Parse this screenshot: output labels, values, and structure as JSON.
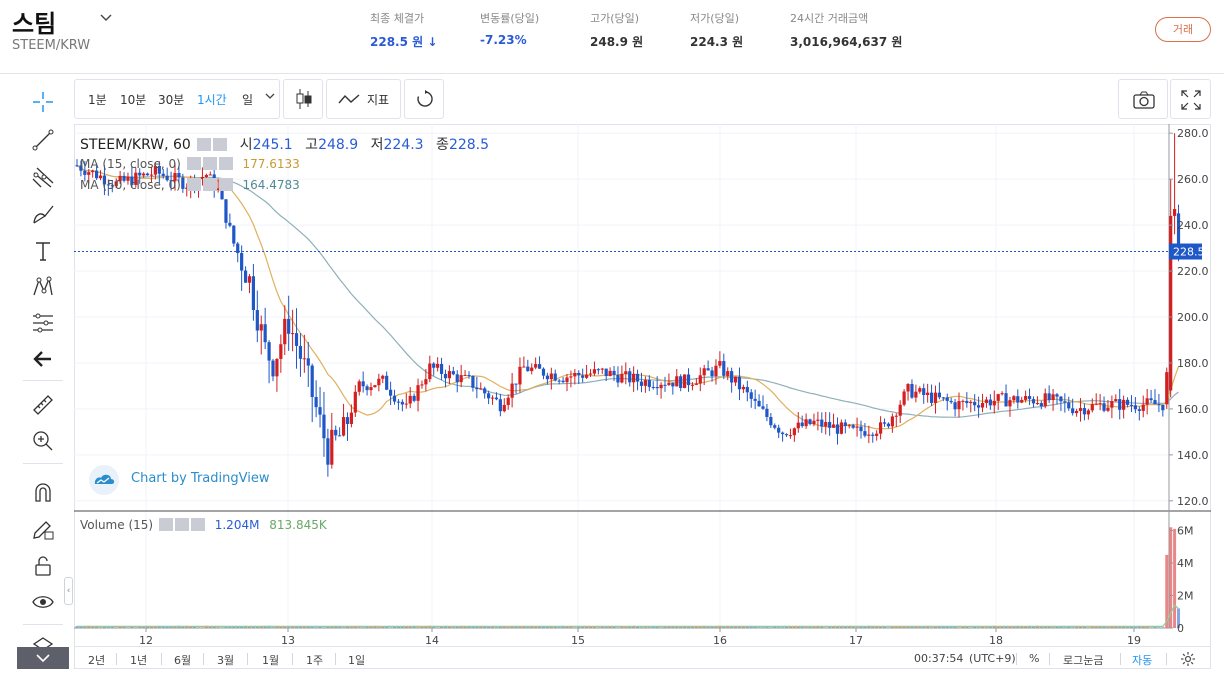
{
  "header": {
    "coin_name": "스팀",
    "pair": "STEEM/KRW",
    "stats": [
      {
        "label": "최종 체결가",
        "value": "228.5 원 ↓",
        "trend": "down"
      },
      {
        "label": "변동률(당일)",
        "value": "-7.23%",
        "trend": "down"
      },
      {
        "label": "고가(당일)",
        "value": "248.9 원",
        "trend": "none"
      },
      {
        "label": "저가(당일)",
        "value": "224.3 원",
        "trend": "none"
      },
      {
        "label": "24시간 거래금액",
        "value": "3,016,964,637 원",
        "trend": "none"
      }
    ],
    "trade_button": "거래"
  },
  "toolbar": {
    "intervals": [
      "1분",
      "10분",
      "30분",
      "1시간",
      "일"
    ],
    "active_interval": "1시간",
    "indicator_label": "지표"
  },
  "legend": {
    "symbol": "STEEM/KRW, 60",
    "open_label": "시",
    "open": "245.1",
    "high_label": "고",
    "high": "248.9",
    "low_label": "저",
    "low": "224.3",
    "close_label": "종",
    "close": "228.5",
    "ma1_label": "MA (15, close, 0)",
    "ma1_value": "177.6133",
    "ma2_label": "MA (50, close, 0)",
    "ma2_value": "164.4783",
    "volume_label": "Volume (15)",
    "volume_value": "1.204M",
    "volume_ma_value": "813.845K"
  },
  "watermark": "Chart by TradingView",
  "colors": {
    "up": "#d31f1f",
    "down": "#1f57c7",
    "ma1": "#e0b060",
    "ma2": "#8fb0b8",
    "accent": "#2196f3",
    "last_price_bg": "#1f57c7"
  },
  "bottom_bar": {
    "ranges": [
      "2년",
      "1년",
      "6월",
      "3월",
      "1월",
      "1주",
      "1일"
    ],
    "time": "00:37:54",
    "timezone": "(UTC+9)",
    "percent": "%",
    "log": "로그눈금",
    "auto": "자동"
  },
  "chart_data": {
    "type": "candlestick",
    "symbol": "STEEM/KRW",
    "interval": "60",
    "x_labels": [
      "12",
      "13",
      "14",
      "15",
      "16",
      "17",
      "18",
      "19"
    ],
    "y_ticks": [
      120.0,
      140.0,
      160.0,
      180.0,
      200.0,
      220.0,
      240.0,
      260.0,
      280.0
    ],
    "ylim": [
      116,
      284
    ],
    "last_price": "228.5",
    "volume_ticks": [
      "6M",
      "4M",
      "2M",
      "0"
    ],
    "anchors": [
      [
        0,
        266
      ],
      [
        10,
        258
      ],
      [
        20,
        263
      ],
      [
        28,
        258
      ],
      [
        33,
        262
      ],
      [
        36,
        255
      ],
      [
        40,
        232
      ],
      [
        44,
        216
      ],
      [
        48,
        186
      ],
      [
        50,
        180
      ],
      [
        54,
        198
      ],
      [
        58,
        178
      ],
      [
        64,
        142
      ],
      [
        68,
        150
      ],
      [
        72,
        170
      ],
      [
        78,
        172
      ],
      [
        84,
        160
      ],
      [
        90,
        178
      ],
      [
        100,
        172
      ],
      [
        108,
        162
      ],
      [
        114,
        178
      ],
      [
        124,
        174
      ],
      [
        134,
        176
      ],
      [
        144,
        172
      ],
      [
        156,
        172
      ],
      [
        164,
        178
      ],
      [
        170,
        168
      ],
      [
        174,
        160
      ],
      [
        180,
        150
      ],
      [
        188,
        154
      ],
      [
        198,
        150
      ],
      [
        206,
        152
      ],
      [
        212,
        168
      ],
      [
        224,
        162
      ],
      [
        236,
        164
      ],
      [
        248,
        164
      ],
      [
        255,
        160
      ],
      [
        262,
        162
      ],
      [
        277,
        162
      ]
    ],
    "spike": [
      {
        "o": 162,
        "h": 178,
        "l": 160,
        "c": 176
      },
      {
        "o": 168,
        "h": 260,
        "l": 165,
        "c": 244
      },
      {
        "o": 244,
        "h": 280,
        "l": 236,
        "c": 247
      },
      {
        "o": 245.1,
        "h": 248.9,
        "l": 224.3,
        "c": 228.5
      }
    ]
  }
}
